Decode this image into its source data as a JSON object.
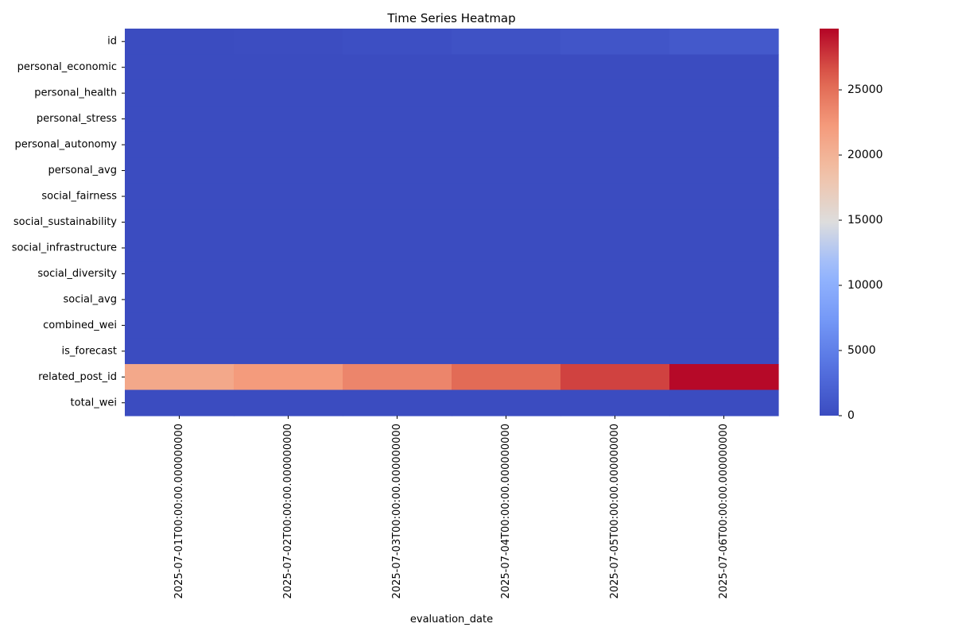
{
  "chart_data": {
    "type": "heatmap",
    "title": "Time Series Heatmap",
    "xlabel": "evaluation_date",
    "ylabel": "",
    "x": [
      "2025-07-01T00:00:00.000000000",
      "2025-07-02T00:00:00.000000000",
      "2025-07-03T00:00:00.000000000",
      "2025-07-04T00:00:00.000000000",
      "2025-07-05T00:00:00.000000000",
      "2025-07-06T00:00:00.000000000"
    ],
    "y": [
      "id",
      "personal_economic",
      "personal_health",
      "personal_stress",
      "personal_autonomy",
      "personal_avg",
      "social_fairness",
      "social_sustainability",
      "social_infrastructure",
      "social_diversity",
      "social_avg",
      "combined_wei",
      "is_forecast",
      "related_post_id",
      "total_wei"
    ],
    "values": [
      [
        20,
        100,
        300,
        600,
        900,
        1300
      ],
      [
        0,
        0,
        0,
        0,
        0,
        0
      ],
      [
        0,
        0,
        0,
        0,
        0,
        0
      ],
      [
        0,
        0,
        0,
        0,
        0,
        0
      ],
      [
        0,
        0,
        0,
        0,
        0,
        0
      ],
      [
        0,
        0,
        0,
        0,
        0,
        0
      ],
      [
        0,
        0,
        0,
        0,
        0,
        0
      ],
      [
        0,
        0,
        0,
        0,
        0,
        0
      ],
      [
        0,
        0,
        0,
        0,
        0,
        0
      ],
      [
        0,
        0,
        0,
        0,
        0,
        0
      ],
      [
        0,
        0,
        0,
        0,
        0,
        0
      ],
      [
        0,
        0,
        0,
        0,
        0,
        0
      ],
      [
        0,
        0,
        0,
        0,
        0,
        0
      ],
      [
        21000,
        22200,
        23600,
        25300,
        27200,
        29500
      ],
      [
        0,
        0,
        0,
        0,
        0,
        0
      ]
    ],
    "colorbar": {
      "min": 0,
      "max": 29700,
      "ticks": [
        0,
        5000,
        10000,
        15000,
        20000,
        25000
      ],
      "colormap": "coolwarm"
    },
    "grid": false,
    "colors": {
      "low": "#3b4cc0",
      "mid": "#dddddd",
      "high": "#b40426"
    }
  }
}
